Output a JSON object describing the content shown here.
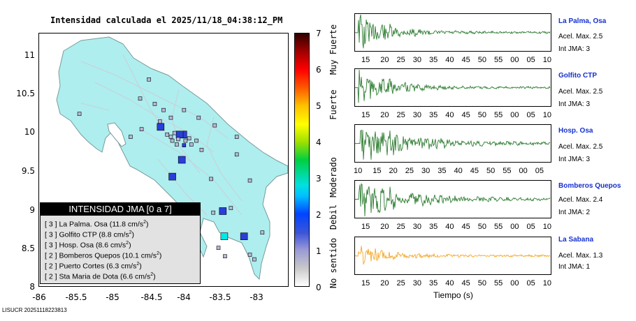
{
  "map": {
    "title": "Intensidad calculada el 2025/11/18_04:38:12_PM",
    "y_ticks": [
      "11",
      "10.5",
      "10",
      "9.5",
      "9",
      "8.5",
      "8"
    ],
    "x_ticks": [
      "-86",
      "-85.5",
      "-85",
      "-84.5",
      "-84",
      "-83.5",
      "-83"
    ],
    "land_color": "#aeeeee",
    "stations": [
      {
        "lon": -84.34,
        "lat": 10.08,
        "intensity": 2,
        "big": true
      },
      {
        "lon": -84.03,
        "lat": 9.98,
        "intensity": 2,
        "big": true
      },
      {
        "lon": -84.08,
        "lat": 9.98,
        "intensity": 2,
        "big": true
      },
      {
        "lon": -84.02,
        "lat": 9.84,
        "intensity": 2,
        "big": false
      },
      {
        "lon": -84.05,
        "lat": 9.65,
        "intensity": 2,
        "big": true
      },
      {
        "lon": -84.18,
        "lat": 9.43,
        "intensity": 2,
        "big": true
      },
      {
        "lon": -83.49,
        "lat": 8.98,
        "intensity": 2,
        "big": true
      },
      {
        "lon": -83.47,
        "lat": 8.65,
        "intensity": 3,
        "big": true
      },
      {
        "lon": -83.2,
        "lat": 8.65,
        "intensity": 2,
        "big": true
      },
      {
        "lon": -84.5,
        "lat": 10.7,
        "intensity": 1,
        "big": false
      },
      {
        "lon": -84.62,
        "lat": 10.45,
        "intensity": 1,
        "big": false
      },
      {
        "lon": -84.42,
        "lat": 10.38,
        "intensity": 1,
        "big": false
      },
      {
        "lon": -84.3,
        "lat": 10.3,
        "intensity": 1,
        "big": false
      },
      {
        "lon": -84.2,
        "lat": 10.2,
        "intensity": 1,
        "big": false
      },
      {
        "lon": -84.35,
        "lat": 10.15,
        "intensity": 1,
        "big": false
      },
      {
        "lon": -84.15,
        "lat": 10.0,
        "intensity": 1,
        "big": false
      },
      {
        "lon": -84.2,
        "lat": 9.95,
        "intensity": 1,
        "big": false
      },
      {
        "lon": -84.25,
        "lat": 9.98,
        "intensity": 1,
        "big": false
      },
      {
        "lon": -84.1,
        "lat": 9.92,
        "intensity": 1,
        "big": false
      },
      {
        "lon": -84.0,
        "lat": 9.9,
        "intensity": 1,
        "big": false
      },
      {
        "lon": -83.95,
        "lat": 9.93,
        "intensity": 1,
        "big": false
      },
      {
        "lon": -83.92,
        "lat": 9.85,
        "intensity": 1,
        "big": false
      },
      {
        "lon": -83.85,
        "lat": 9.9,
        "intensity": 1,
        "big": false
      },
      {
        "lon": -83.82,
        "lat": 10.2,
        "intensity": 1,
        "big": false
      },
      {
        "lon": -83.6,
        "lat": 10.1,
        "intensity": 1,
        "big": false
      },
      {
        "lon": -83.3,
        "lat": 9.95,
        "intensity": 1,
        "big": false
      },
      {
        "lon": -84.6,
        "lat": 10.05,
        "intensity": 1,
        "big": false
      },
      {
        "lon": -84.75,
        "lat": 9.95,
        "intensity": 1,
        "big": false
      },
      {
        "lon": -85.45,
        "lat": 10.25,
        "intensity": 1,
        "big": false
      },
      {
        "lon": -83.78,
        "lat": 9.78,
        "intensity": 1,
        "big": false
      },
      {
        "lon": -83.65,
        "lat": 9.4,
        "intensity": 1,
        "big": false
      },
      {
        "lon": -84.02,
        "lat": 10.3,
        "intensity": 1,
        "big": false
      },
      {
        "lon": -83.3,
        "lat": 9.72,
        "intensity": 1,
        "big": false
      },
      {
        "lon": -83.12,
        "lat": 9.38,
        "intensity": 1,
        "big": false
      },
      {
        "lon": -83.38,
        "lat": 9.02,
        "intensity": 1,
        "big": false
      },
      {
        "lon": -83.62,
        "lat": 8.96,
        "intensity": 1,
        "big": false
      },
      {
        "lon": -82.95,
        "lat": 8.7,
        "intensity": 1,
        "big": false
      },
      {
        "lon": -83.12,
        "lat": 8.41,
        "intensity": 1,
        "big": false
      },
      {
        "lon": -83.06,
        "lat": 8.35,
        "intensity": 1,
        "big": false
      },
      {
        "lon": -83.46,
        "lat": 8.39,
        "intensity": 1,
        "big": false
      },
      {
        "lon": -83.55,
        "lat": 8.5,
        "intensity": 1,
        "big": false
      },
      {
        "lon": -84.12,
        "lat": 9.85,
        "intensity": 1,
        "big": false
      },
      {
        "lon": -84.18,
        "lat": 9.9,
        "intensity": 1,
        "big": false
      }
    ]
  },
  "legend": {
    "header": "INTENSIDAD JMA [0 a 7]",
    "rows": [
      {
        "level": "[ 3 ]",
        "name": "La Palma. Osa",
        "value": "11.8",
        "unit": "cm/s",
        "exp": "2"
      },
      {
        "level": "[ 3 ]",
        "name": "Golfito CTP",
        "value": "8.8",
        "unit": "cm/s",
        "exp": "2"
      },
      {
        "level": "[ 3 ]",
        "name": "Hosp. Osa",
        "value": "8.6",
        "unit": "cm/s",
        "exp": "2"
      },
      {
        "level": "[ 2 ]",
        "name": "Bomberos Quepos",
        "value": "10.1",
        "unit": "cm/s",
        "exp": "2"
      },
      {
        "level": "[ 2 ]",
        "name": "Puerto Cortes",
        "value": "6.3",
        "unit": "cm/s",
        "exp": "2"
      },
      {
        "level": "[ 2 ]",
        "name": "Sta Maria de Dota",
        "value": "6.6",
        "unit": "cm/s",
        "exp": "2"
      }
    ]
  },
  "colorbar": {
    "ticks": [
      "7",
      "6",
      "5",
      "4",
      "3",
      "2",
      "1",
      "0"
    ],
    "labels": [
      "Muy Fuerte",
      "Fuerte",
      "Moderado",
      "Debil",
      "No sentido"
    ]
  },
  "traces": [
    {
      "name": "La Palma, Osa",
      "acel": "Acel. Max. 2.5",
      "int": "Int JMA: 3",
      "color": "#2e7d32",
      "ticks": [
        "15",
        "20",
        "25",
        "30",
        "35",
        "40",
        "45",
        "50",
        "55",
        "00",
        "05",
        "10"
      ]
    },
    {
      "name": "Golfito CTP",
      "acel": "Acel. Max. 2.5",
      "int": "Int JMA: 3",
      "color": "#2e7d32",
      "ticks": [
        "15",
        "20",
        "25",
        "30",
        "35",
        "40",
        "45",
        "50",
        "55",
        "00",
        "05",
        "10"
      ]
    },
    {
      "name": "Hosp. Osa",
      "acel": "Acel. Max. 2.5",
      "int": "Int JMA: 3",
      "color": "#2e7d32",
      "ticks": [
        "10",
        "15",
        "20",
        "25",
        "30",
        "35",
        "40",
        "45",
        "50",
        "55",
        "00",
        "05"
      ]
    },
    {
      "name": "Bomberos Quepos",
      "acel": "Acel. Max. 2.4",
      "int": "Int JMA: 2",
      "color": "#2e7d32",
      "ticks": [
        "15",
        "20",
        "25",
        "30",
        "35",
        "40",
        "45",
        "50",
        "55",
        "00",
        "05",
        "10"
      ]
    },
    {
      "name": "La Sabana",
      "acel": "Acel. Max. 1.3",
      "int": "Int JMA: 1",
      "color": "#f5a623",
      "ticks": [
        "15",
        "20",
        "25",
        "30",
        "35",
        "40",
        "45",
        "50",
        "55",
        "00",
        "05",
        "10"
      ]
    }
  ],
  "x_axis_title": "Tiempo (s)",
  "footer": "LISUCR 20251118223813"
}
